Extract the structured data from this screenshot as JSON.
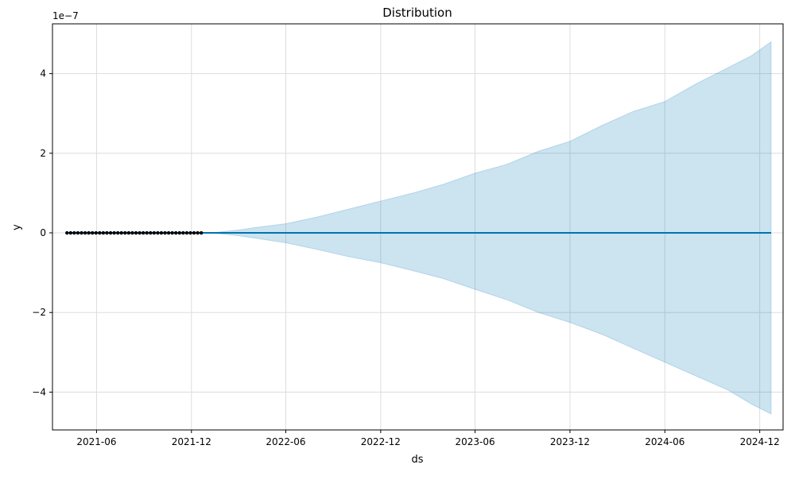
{
  "chart_data": {
    "type": "line",
    "title": "Distribution",
    "xlabel": "ds",
    "ylabel": "y",
    "y_multiplier_label": "1e−7",
    "xlim": [
      "2021-03-08",
      "2025-01-15"
    ],
    "ylim": [
      -4.95e-07,
      5.25e-07
    ],
    "grid": true,
    "x_ticks": [
      {
        "date": "2021-06-01",
        "label": "2021-06"
      },
      {
        "date": "2021-12-01",
        "label": "2021-12"
      },
      {
        "date": "2022-06-01",
        "label": "2022-06"
      },
      {
        "date": "2022-12-01",
        "label": "2022-12"
      },
      {
        "date": "2023-06-01",
        "label": "2023-06"
      },
      {
        "date": "2023-12-01",
        "label": "2023-12"
      },
      {
        "date": "2024-06-01",
        "label": "2024-06"
      },
      {
        "date": "2024-12-01",
        "label": "2024-12"
      }
    ],
    "y_ticks": [
      {
        "value": -4e-07,
        "label": "−4"
      },
      {
        "value": -2e-07,
        "label": "−2"
      },
      {
        "value": 0,
        "label": "0"
      },
      {
        "value": 2e-07,
        "label": "2"
      },
      {
        "value": 4e-07,
        "label": "4"
      }
    ],
    "observed_points": {
      "start": "2021-04-05",
      "end": "2021-12-20",
      "count": 38,
      "value": 0,
      "color": "#000000"
    },
    "forecast_line": {
      "x": [
        "2021-04-05",
        "2024-12-23"
      ],
      "y": [
        0,
        0
      ],
      "color": "#0072b2"
    },
    "uncertainty_band": {
      "color": "#0072b2",
      "x": [
        "2021-12-20",
        "2022-01-15",
        "2022-03-01",
        "2022-04-01",
        "2022-06-01",
        "2022-08-01",
        "2022-10-01",
        "2022-12-01",
        "2023-02-01",
        "2023-04-01",
        "2023-06-01",
        "2023-08-01",
        "2023-10-01",
        "2023-12-01",
        "2024-02-01",
        "2024-04-01",
        "2024-06-01",
        "2024-08-01",
        "2024-10-01",
        "2024-11-15",
        "2024-12-23"
      ],
      "upper": [
        0,
        1e-09,
        7e-09,
        1.3e-08,
        2.3e-08,
        4e-08,
        6e-08,
        8e-08,
        1e-07,
        1.22e-07,
        1.5e-07,
        1.72e-07,
        2.05e-07,
        2.3e-07,
        2.7e-07,
        3.05e-07,
        3.3e-07,
        3.75e-07,
        4.15e-07,
        4.45e-07,
        4.8e-07
      ],
      "lower": [
        0,
        -1e-09,
        -7e-09,
        -1.3e-08,
        -2.5e-08,
        -4.2e-08,
        -6e-08,
        -7.5e-08,
        -9.5e-08,
        -1.15e-07,
        -1.42e-07,
        -1.68e-07,
        -2e-07,
        -2.25e-07,
        -2.55e-07,
        -2.9e-07,
        -3.25e-07,
        -3.6e-07,
        -3.95e-07,
        -4.3e-07,
        -4.55e-07
      ]
    }
  }
}
